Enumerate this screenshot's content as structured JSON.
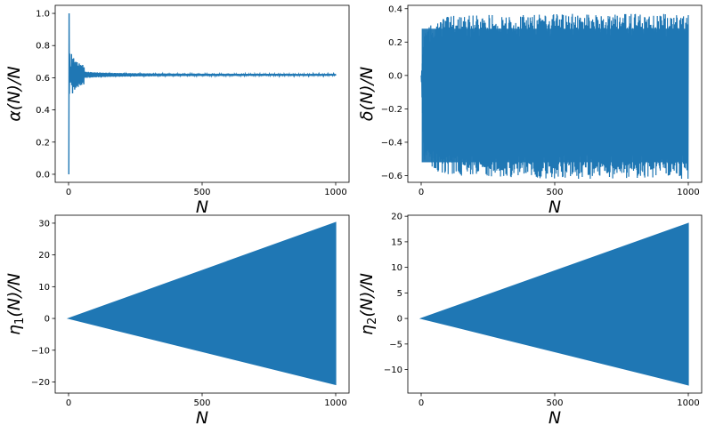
{
  "figure": {
    "series_color": "#1f77b4"
  },
  "chart_data": [
    {
      "id": "alpha",
      "type": "line",
      "title": "",
      "xlabel": "N",
      "ylabel": "α(N)/N",
      "xlim": [
        -50,
        1050
      ],
      "ylim": [
        -0.05,
        1.05
      ],
      "xticks": [
        0,
        500,
        1000
      ],
      "xtick_labels": [
        "0",
        "500",
        "1000"
      ],
      "yticks": [
        0.0,
        0.2,
        0.4,
        0.6,
        0.8,
        1.0
      ],
      "ytick_labels": [
        "0.0",
        "0.2",
        "0.4",
        "0.6",
        "0.8",
        "1.0"
      ],
      "grid": false,
      "x": [
        1,
        2,
        3,
        4,
        5,
        6,
        7,
        8,
        9,
        10,
        12,
        15,
        20,
        30,
        50,
        100,
        200,
        500,
        1000
      ],
      "y": [
        0.0,
        1.0,
        0.5,
        0.75,
        0.6,
        0.67,
        0.57,
        0.63,
        0.6,
        0.62,
        0.6,
        0.63,
        0.61,
        0.62,
        0.617,
        0.618,
        0.618,
        0.618,
        0.618
      ]
    },
    {
      "id": "delta",
      "type": "line",
      "title": "",
      "xlabel": "N",
      "ylabel": "δ(N)/N",
      "xlim": [
        -50,
        1050
      ],
      "ylim": [
        -0.64,
        0.42
      ],
      "xticks": [
        0,
        500,
        1000
      ],
      "xtick_labels": [
        "0",
        "500",
        "1000"
      ],
      "yticks": [
        -0.6,
        -0.4,
        -0.2,
        0.0,
        0.2,
        0.4
      ],
      "ytick_labels": [
        "−0.6",
        "−0.4",
        "−0.2",
        "0.0",
        "0.2",
        "0.4"
      ],
      "grid": false,
      "envelope_x": [
        0,
        10,
        50,
        100,
        500,
        1000
      ],
      "envelope_upper": [
        0.0,
        0.25,
        0.33,
        0.36,
        0.37,
        0.37
      ],
      "envelope_lower": [
        0.0,
        -0.5,
        -0.57,
        -0.6,
        -0.62,
        -0.62
      ]
    },
    {
      "id": "eta1",
      "type": "area",
      "title": "",
      "xlabel": "N",
      "ylabel": "η₁(N)/N",
      "ylabel_base": "η",
      "ylabel_sub": "1",
      "ylabel_tail": "(N)/N",
      "xlim": [
        -50,
        1050
      ],
      "ylim": [
        -23.5,
        32.5
      ],
      "xticks": [
        0,
        500,
        1000
      ],
      "xtick_labels": [
        "0",
        "500",
        "1000"
      ],
      "yticks": [
        -20,
        -10,
        0,
        10,
        20,
        30
      ],
      "ytick_labels": [
        "−20",
        "−10",
        "0",
        "10",
        "20",
        "30"
      ],
      "grid": false,
      "x": [
        0,
        1000
      ],
      "upper": [
        0,
        30.2
      ],
      "lower": [
        0,
        -20.8
      ]
    },
    {
      "id": "eta2",
      "type": "area",
      "title": "",
      "xlabel": "N",
      "ylabel": "η₂(N)/N",
      "ylabel_base": "η",
      "ylabel_sub": "2",
      "ylabel_tail": "(N)/N",
      "xlim": [
        -50,
        1050
      ],
      "ylim": [
        -14.6,
        20.2
      ],
      "xticks": [
        0,
        500,
        1000
      ],
      "xtick_labels": [
        "0",
        "500",
        "1000"
      ],
      "yticks": [
        -10,
        -5,
        0,
        5,
        10,
        15,
        20
      ],
      "ytick_labels": [
        "−10",
        "−5",
        "0",
        "5",
        "10",
        "15",
        "20"
      ],
      "grid": false,
      "x": [
        0,
        1000
      ],
      "upper": [
        0,
        18.6
      ],
      "lower": [
        0,
        -13.0
      ]
    }
  ]
}
